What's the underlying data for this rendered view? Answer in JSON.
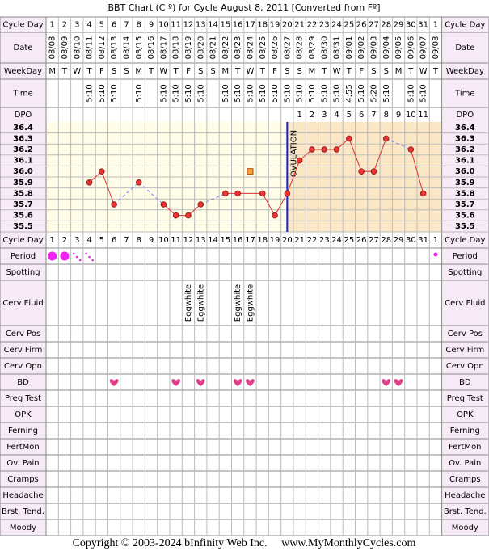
{
  "title": "BBT Chart (C º) for Cycle August 8, 2011  [Converted from Fº]",
  "row_labels": [
    "Cycle Day",
    "Date",
    "WeekDay",
    "Time",
    "DPO",
    "Cycle Day",
    "Period",
    "Spotting",
    "Cerv Fluid",
    "Cerv Pos",
    "Cerv Firm",
    "Cerv Opn",
    "BD",
    "Preg Test",
    "OPK",
    "Ferning",
    "FertMon",
    "Ov. Pain",
    "Cramps",
    "Headache",
    "Brst. Tend.",
    "Moody"
  ],
  "cycle_days": [
    1,
    2,
    3,
    4,
    5,
    6,
    7,
    8,
    9,
    10,
    11,
    12,
    13,
    14,
    15,
    16,
    17,
    18,
    19,
    20,
    21,
    22,
    23,
    24,
    25,
    26,
    27,
    28,
    29,
    30,
    31,
    1
  ],
  "dates": [
    "08/08",
    "08/09",
    "08/10",
    "08/11",
    "08/12",
    "08/13",
    "08/14",
    "08/15",
    "08/16",
    "08/17",
    "08/18",
    "08/19",
    "08/20",
    "08/21",
    "08/22",
    "08/23",
    "08/24",
    "08/25",
    "08/26",
    "08/27",
    "08/28",
    "08/29",
    "08/30",
    "08/31",
    "09/01",
    "09/02",
    "09/03",
    "09/04",
    "09/05",
    "09/06",
    "09/07",
    "09/08"
  ],
  "weekdays": [
    "M",
    "T",
    "W",
    "T",
    "F",
    "S",
    "S",
    "M",
    "T",
    "W",
    "T",
    "F",
    "S",
    "S",
    "M",
    "T",
    "W",
    "T",
    "F",
    "S",
    "S",
    "M",
    "T",
    "W",
    "T",
    "F",
    "S",
    "S",
    "M",
    "T",
    "W",
    "T"
  ],
  "times": [
    null,
    null,
    null,
    "5:10",
    "5:10",
    "5:10",
    null,
    "5:10",
    null,
    "5:10",
    "5:10",
    "5:10",
    "5:10",
    null,
    "5:10",
    "5:10",
    "5:10",
    "5:10",
    "5:10",
    "5:10",
    "5:10",
    "5:10",
    "5:10",
    "5:10",
    "4:55",
    "5:10",
    "5:20",
    "5:10",
    null,
    "5:10",
    "5:10",
    null
  ],
  "dpo": [
    null,
    null,
    null,
    null,
    null,
    null,
    null,
    null,
    null,
    null,
    null,
    null,
    null,
    null,
    null,
    null,
    null,
    null,
    null,
    null,
    1,
    2,
    3,
    4,
    5,
    6,
    7,
    8,
    9,
    10,
    11,
    null
  ],
  "temperature": {
    "ylim": [
      35.45,
      36.45
    ],
    "yticks": [
      36.4,
      36.3,
      36.2,
      36.1,
      {
        "value": 36.0,
        "label": "36.0"
      },
      35.9,
      35.8,
      35.7,
      35.6,
      35.5
    ],
    "values": [
      null,
      null,
      null,
      35.9,
      36.0,
      35.7,
      null,
      35.9,
      null,
      35.7,
      35.6,
      35.6,
      35.7,
      null,
      35.8,
      35.8,
      null,
      35.8,
      35.6,
      35.8,
      36.1,
      36.2,
      36.2,
      36.2,
      36.3,
      36.0,
      36.0,
      36.3,
      null,
      36.2,
      35.8,
      null
    ],
    "excluded": [
      {
        "day": 17,
        "value": 36.0
      }
    ],
    "ovulation_day": 20,
    "ovulation_label": "OVULATION"
  },
  "period": [
    {
      "day": 1,
      "flow": "heavy"
    },
    {
      "day": 2,
      "flow": "heavy"
    },
    {
      "day": 3,
      "flow": "light"
    },
    {
      "day": 4,
      "flow": "light"
    },
    {
      "day": 32,
      "flow": "spot"
    }
  ],
  "cerv_fluid": [
    {
      "day": 12,
      "label": "Eggwhite"
    },
    {
      "day": 13,
      "label": "Eggwhite"
    },
    {
      "day": 16,
      "label": "Eggwhite"
    },
    {
      "day": 17,
      "label": "Eggwhite"
    }
  ],
  "bd": [
    6,
    11,
    13,
    16,
    17,
    28,
    29
  ],
  "copyright": "Copyright © 2003-2024 bInfinity Web Inc.     www.MyMonthlyCycles.com"
}
